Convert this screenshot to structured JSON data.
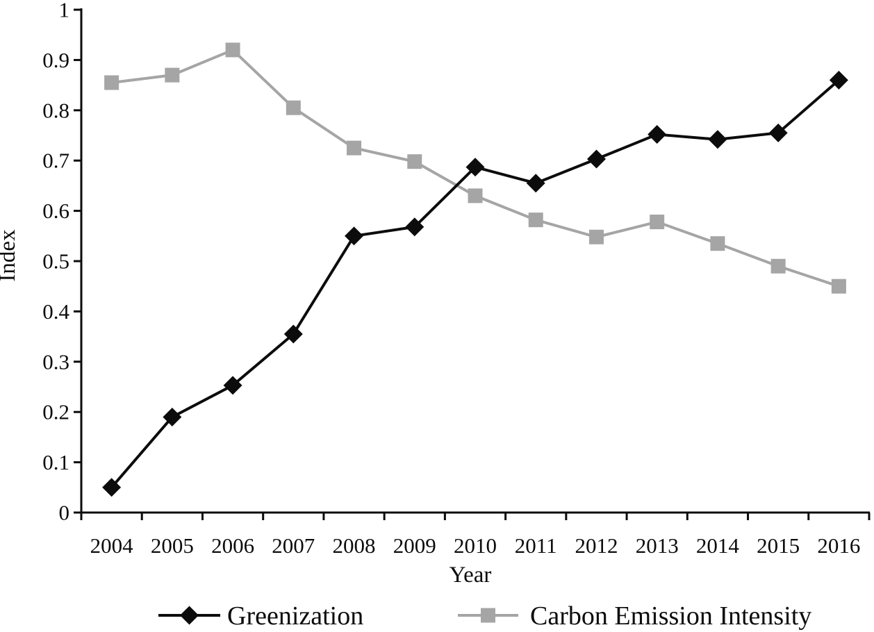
{
  "chart_data": {
    "type": "line",
    "title": "",
    "xlabel": "Year",
    "ylabel": "Index",
    "ylim": [
      0,
      1
    ],
    "ytick_step": 0.1,
    "grid": false,
    "legend_position": "bottom",
    "axis_color": "#0c0c0c",
    "categories": [
      "2004",
      "2005",
      "2006",
      "2007",
      "2008",
      "2009",
      "2010",
      "2011",
      "2012",
      "2013",
      "2014",
      "2015",
      "2016"
    ],
    "series": [
      {
        "name": "Greenization",
        "color": "#0c0c0c",
        "marker": "diamond",
        "values": [
          0.05,
          0.19,
          0.253,
          0.355,
          0.55,
          0.568,
          0.687,
          0.655,
          0.703,
          0.752,
          0.742,
          0.755,
          0.86
        ]
      },
      {
        "name": "Carbon Emission Intensity",
        "color": "#a5a5a5",
        "marker": "square",
        "values": [
          0.855,
          0.87,
          0.92,
          0.805,
          0.725,
          0.698,
          0.63,
          0.582,
          0.548,
          0.578,
          0.535,
          0.49,
          0.45
        ]
      }
    ]
  }
}
